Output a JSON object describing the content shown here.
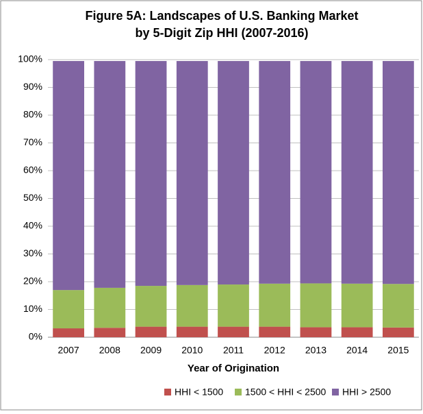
{
  "chart_data": {
    "type": "stacked_bar",
    "title": [
      "Figure 5A: Landscapes of U.S. Banking Market",
      "by 5-Digit Zip HHI (2007-2016)"
    ],
    "x_label": "Year of Origination",
    "categories": [
      "2007",
      "2008",
      "2009",
      "2010",
      "2011",
      "2012",
      "2013",
      "2014",
      "2015"
    ],
    "series": [
      {
        "name": "HHI < 1500",
        "color": "#c0504d",
        "values": [
          3.2,
          3.4,
          3.8,
          3.8,
          3.8,
          3.8,
          3.6,
          3.6,
          3.5
        ]
      },
      {
        "name": "1500 < HHI < 2500",
        "color": "#9bbb59",
        "values": [
          13.8,
          14.4,
          14.7,
          15.0,
          15.2,
          15.5,
          15.8,
          15.7,
          15.7
        ]
      },
      {
        "name": "HHI > 2500",
        "color": "#8064a2",
        "values": [
          82.5,
          81.7,
          81.0,
          80.7,
          80.5,
          80.2,
          80.1,
          80.2,
          80.3
        ]
      }
    ],
    "ylim": [
      0,
      100
    ],
    "yticks": [
      {
        "value": 0,
        "label": "0%"
      },
      {
        "value": 10,
        "label": "10%"
      },
      {
        "value": 20,
        "label": "20%"
      },
      {
        "value": 30,
        "label": "30%"
      },
      {
        "value": 40,
        "label": "40%"
      },
      {
        "value": 50,
        "label": "50%"
      },
      {
        "value": 60,
        "label": "60%"
      },
      {
        "value": 70,
        "label": "70%"
      },
      {
        "value": 80,
        "label": "80%"
      },
      {
        "value": 90,
        "label": "90%"
      },
      {
        "value": 100,
        "label": "100%"
      }
    ],
    "grid": true,
    "legend": "bottom"
  }
}
